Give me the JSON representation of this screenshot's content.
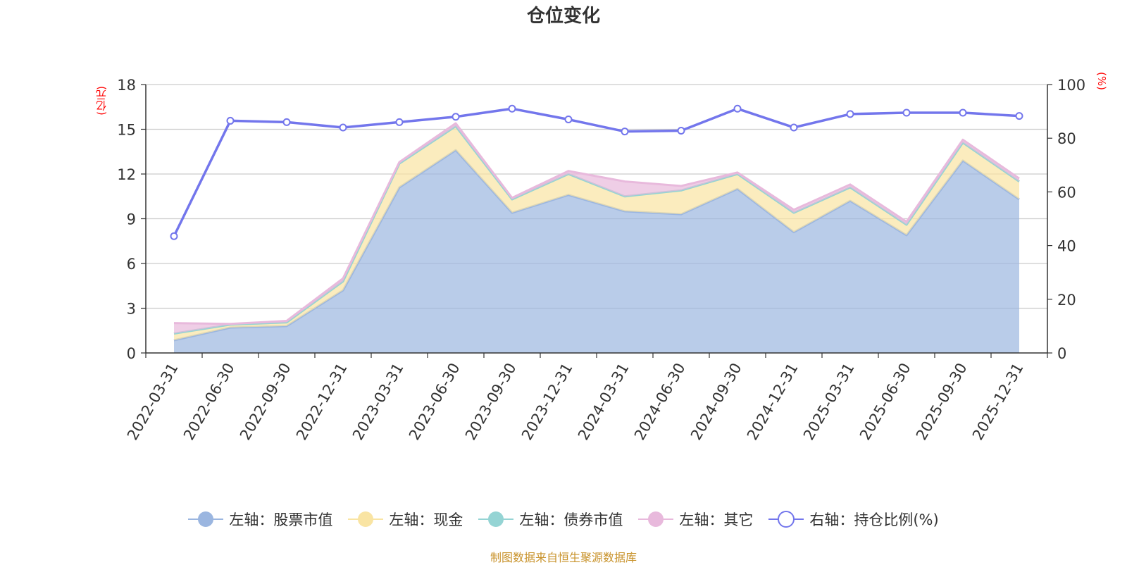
{
  "chart_data": {
    "type": "area",
    "title": "仓位变化",
    "left_axis_unit": "(亿元)",
    "right_axis_unit": "(%)",
    "categories": [
      "2022-03-31",
      "2022-06-30",
      "2022-09-30",
      "2022-12-31",
      "2023-03-31",
      "2023-06-30",
      "2023-09-30",
      "2023-12-31",
      "2024-03-31",
      "2024-06-30",
      "2024-09-30",
      "2024-12-31",
      "2025-03-31",
      "2025-06-30",
      "2025-09-30",
      "2025-12-31"
    ],
    "left_ylim": [
      0,
      18
    ],
    "left_ticks": [
      0,
      3,
      6,
      9,
      12,
      15,
      18
    ],
    "right_ylim": [
      0,
      100
    ],
    "right_ticks": [
      0,
      20,
      40,
      60,
      80,
      100
    ],
    "grid": true,
    "stacked": true,
    "series": [
      {
        "name": "左轴：股票市值",
        "axis": "left",
        "color": "#9bb6e0",
        "values": [
          0.85,
          1.7,
          1.8,
          4.2,
          11.1,
          13.6,
          9.4,
          10.6,
          9.5,
          9.3,
          11.0,
          8.1,
          10.2,
          7.9,
          12.9,
          10.3
        ]
      },
      {
        "name": "左轴：现金",
        "axis": "left",
        "color": "#f9e4a3",
        "values": [
          0.45,
          0.2,
          0.25,
          0.6,
          1.6,
          1.6,
          0.9,
          1.4,
          1.0,
          1.6,
          1.0,
          1.3,
          0.9,
          0.7,
          1.2,
          1.2
        ]
      },
      {
        "name": "左轴：债券市值",
        "axis": "left",
        "color": "#95d4d4",
        "values": [
          0,
          0,
          0,
          0,
          0,
          0,
          0,
          0,
          0,
          0,
          0,
          0,
          0,
          0,
          0,
          0
        ]
      },
      {
        "name": "左轴：其它",
        "axis": "left",
        "color": "#e8b9dc",
        "values": [
          0.7,
          0.05,
          0.1,
          0.2,
          0.1,
          0.2,
          0.1,
          0.2,
          1.0,
          0.3,
          0.1,
          0.2,
          0.2,
          0.2,
          0.2,
          0.2
        ]
      },
      {
        "name": "右轴：持仓比例(%)",
        "axis": "right",
        "color": "#7376ec",
        "values": [
          43.5,
          86.5,
          86.0,
          84.0,
          86.0,
          88.0,
          91.0,
          87.0,
          82.5,
          82.8,
          91.0,
          84.0,
          89.0,
          89.5,
          89.5,
          88.3
        ]
      }
    ]
  },
  "source": "制图数据来自恒生聚源数据库"
}
